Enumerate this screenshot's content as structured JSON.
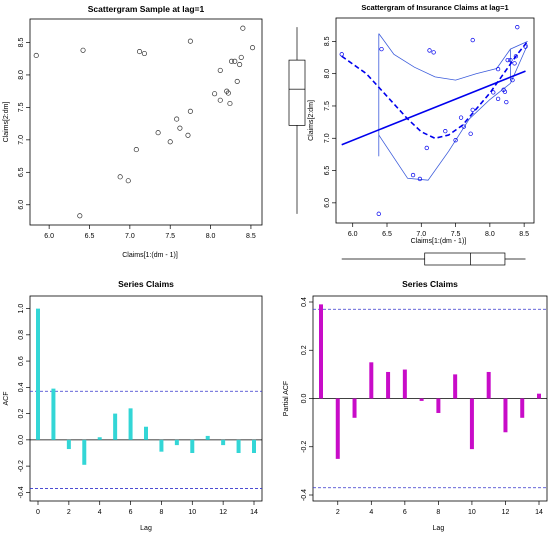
{
  "colors": {
    "axis": "#000000",
    "points_p1": "#333333",
    "blue": "#0000ee",
    "blue_light": "#3b5bdb",
    "acf": "#33d6d6",
    "pacf": "#c80cc8",
    "ci": "#3333cc"
  },
  "chart_data": [
    {
      "type": "scatter",
      "title": "Scattergram Sample at lag=1",
      "xlabel": "Claims[1:(dm - 1)]",
      "ylabel": "Claims[2:dm]",
      "xlim": [
        5.8,
        8.6
      ],
      "ylim": [
        5.75,
        8.8
      ],
      "xticks": [
        "6.0",
        "6.5",
        "7.0",
        "7.5",
        "8.0",
        "8.5"
      ],
      "yticks": [
        "6.0",
        "6.5",
        "7.0",
        "7.5",
        "8.0",
        "8.5"
      ],
      "x": [
        5.84,
        6.42,
        6.38,
        7.12,
        7.18,
        7.75,
        6.88,
        6.98,
        7.08,
        7.35,
        7.5,
        7.58,
        7.62,
        7.72,
        7.75,
        8.05,
        8.12,
        8.12,
        8.2,
        8.22,
        8.24,
        8.26,
        8.3,
        8.33,
        8.36,
        8.38,
        8.4,
        8.52
      ],
      "y": [
        8.3,
        8.38,
        5.83,
        8.36,
        8.33,
        8.52,
        6.43,
        6.37,
        6.85,
        7.11,
        6.97,
        7.32,
        7.18,
        7.07,
        7.44,
        7.71,
        7.61,
        8.07,
        7.75,
        7.72,
        7.56,
        8.21,
        8.21,
        7.9,
        8.16,
        8.27,
        8.72,
        8.42
      ]
    },
    {
      "type": "scatter",
      "title": "Scattergram of Insurance Claims at lag=1",
      "xlabel": "Claims[1:(dm - 1)]",
      "ylabel": "Claims[2:dm]",
      "xlim": [
        5.8,
        8.6
      ],
      "ylim": [
        5.75,
        8.8
      ],
      "xticks": [
        "6.0",
        "6.5",
        "7.0",
        "7.5",
        "8.0",
        "8.5"
      ],
      "yticks": [
        "6.0",
        "6.5",
        "7.0",
        "7.5",
        "8.0",
        "8.5"
      ],
      "x": [
        5.84,
        6.42,
        6.38,
        7.12,
        7.18,
        7.75,
        6.88,
        6.98,
        7.08,
        7.35,
        7.5,
        7.58,
        7.62,
        7.72,
        7.75,
        8.05,
        8.12,
        8.12,
        8.2,
        8.22,
        8.24,
        8.26,
        8.3,
        8.33,
        8.36,
        8.38,
        8.4,
        8.52
      ],
      "y": [
        8.3,
        8.38,
        5.83,
        8.36,
        8.33,
        8.52,
        6.43,
        6.37,
        6.85,
        7.11,
        6.97,
        7.32,
        7.18,
        7.07,
        7.44,
        7.71,
        7.61,
        8.07,
        7.75,
        7.72,
        7.56,
        8.21,
        8.21,
        7.9,
        8.16,
        8.27,
        8.72,
        8.42
      ],
      "regression_line": [
        [
          5.84,
          6.9
        ],
        [
          8.52,
          8.04
        ]
      ],
      "smoother": [
        [
          5.84,
          8.27
        ],
        [
          6.2,
          8.0
        ],
        [
          6.5,
          7.65
        ],
        [
          6.8,
          7.3
        ],
        [
          7.0,
          7.1
        ],
        [
          7.2,
          7.0
        ],
        [
          7.4,
          7.05
        ],
        [
          7.6,
          7.2
        ],
        [
          7.8,
          7.45
        ],
        [
          8.0,
          7.7
        ],
        [
          8.2,
          8.0
        ],
        [
          8.4,
          8.3
        ],
        [
          8.55,
          8.5
        ]
      ],
      "spread_upper": [
        [
          6.38,
          8.62
        ],
        [
          6.6,
          8.3
        ],
        [
          6.9,
          8.1
        ],
        [
          7.2,
          7.95
        ],
        [
          7.5,
          7.9
        ],
        [
          7.8,
          8.0
        ],
        [
          8.1,
          8.08
        ],
        [
          8.3,
          8.38
        ],
        [
          8.55,
          8.5
        ]
      ],
      "spread_lower": [
        [
          6.38,
          7.05
        ],
        [
          6.8,
          6.38
        ],
        [
          7.1,
          6.35
        ],
        [
          7.4,
          6.8
        ],
        [
          7.7,
          7.3
        ],
        [
          8.0,
          7.6
        ],
        [
          8.3,
          7.85
        ],
        [
          8.55,
          8.45
        ]
      ],
      "spread_connectors": [
        [
          [
            6.38,
            8.62
          ],
          [
            6.38,
            6.72
          ]
        ],
        [
          [
            8.3,
            8.38
          ],
          [
            8.3,
            7.9
          ]
        ]
      ],
      "boxplot_x": {
        "min": 5.84,
        "q1": 7.05,
        "median": 7.72,
        "q3": 8.22,
        "max": 8.52
      },
      "boxplot_y": {
        "min": 5.83,
        "q1": 7.2,
        "median": 7.76,
        "q3": 8.21,
        "max": 8.72
      }
    },
    {
      "type": "bar",
      "title": "Series  Claims",
      "xlabel": "Lag",
      "ylabel": "ACF",
      "xlim": [
        0,
        14
      ],
      "ylim": [
        -0.42,
        1.05
      ],
      "xticks": [
        "0",
        "2",
        "4",
        "6",
        "8",
        "10",
        "12",
        "14"
      ],
      "yticks": [
        "-0.4",
        "-0.2",
        "0.0",
        "0.2",
        "0.4",
        "0.6",
        "0.8",
        "1.0"
      ],
      "ci": 0.37,
      "x": [
        0,
        1,
        2,
        3,
        4,
        5,
        6,
        7,
        8,
        9,
        10,
        11,
        12,
        13,
        14
      ],
      "values": [
        1.0,
        0.39,
        -0.07,
        -0.19,
        0.02,
        0.2,
        0.24,
        0.1,
        -0.09,
        -0.04,
        -0.1,
        0.03,
        -0.04,
        -0.1,
        -0.1
      ]
    },
    {
      "type": "bar",
      "title": "Series  Claims",
      "xlabel": "Lag",
      "ylabel": "Partial ACF",
      "xlim": [
        1,
        14
      ],
      "ylim": [
        -0.4,
        0.4
      ],
      "xticks": [
        "2",
        "4",
        "6",
        "8",
        "10",
        "12",
        "14"
      ],
      "yticks": [
        "-0.4",
        "-0.2",
        "0.0",
        "0.2",
        "0.4"
      ],
      "ci": 0.37,
      "x": [
        1,
        2,
        3,
        4,
        5,
        6,
        7,
        8,
        9,
        10,
        11,
        12,
        13,
        14
      ],
      "values": [
        0.39,
        -0.25,
        -0.08,
        0.15,
        0.11,
        0.12,
        -0.01,
        -0.06,
        0.1,
        -0.21,
        0.11,
        -0.14,
        -0.08,
        0.02
      ]
    }
  ]
}
